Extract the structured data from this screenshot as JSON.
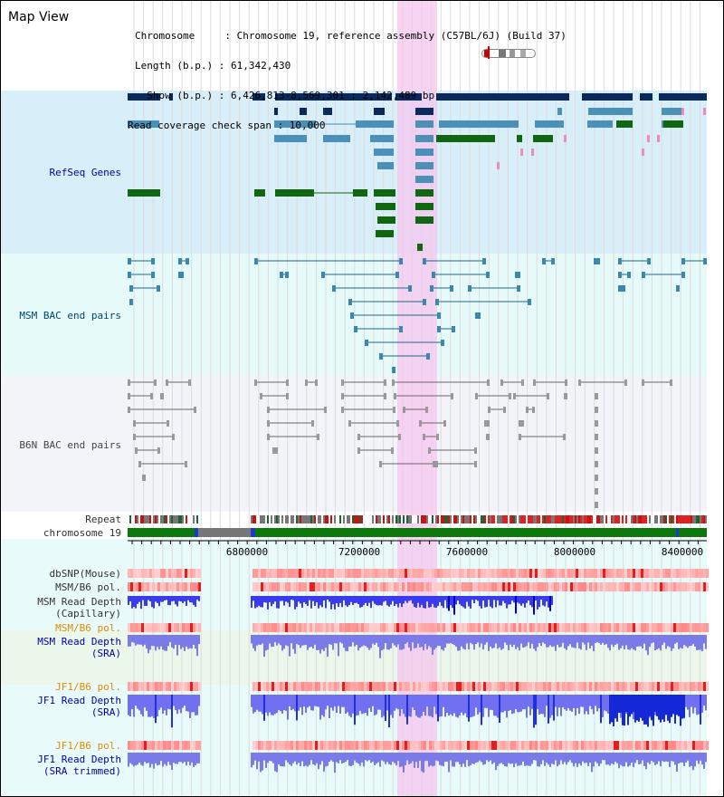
{
  "title": "Map View",
  "info_lines": [
    "Chromosome     : Chromosome 19, reference assembly (C57BL/6J) (Build 37)",
    "Length (b.p.) : 61,342,430",
    "  Show (b.p.) : 6,426,813-8,569,301 : 2,142,489 bp",
    "Read coverage check span : 10,000"
  ],
  "tracks": {
    "refseq": "RefSeq Genes",
    "msm_bac": "MSM BAC end pairs",
    "b6n_bac": "B6N BAC end pairs",
    "repeat": "Repeat",
    "chromosome": "chromosome 19",
    "dbsnp": "dbSNP(Mouse)",
    "msm_b6_pol_1": "MSM/B6 pol.",
    "msm_read_depth_cap_1": "MSM Read Depth",
    "msm_read_depth_cap_2": "(Capillary)",
    "msm_b6_pol_2": "MSM/B6 pol.",
    "msm_read_depth_sra_1": "MSM Read Depth",
    "msm_read_depth_sra_2": "(SRA)",
    "jf1_b6_pol_1": "JF1/B6 pol.",
    "jf1_read_depth_1": "JF1 Read Depth",
    "jf1_read_depth_2": "(SRA)",
    "jf1_b6_pol_2": "JF1/B6 pol.",
    "jf1_trim_1": "JF1 Read Depth",
    "jf1_trim_2": "(SRA trimmed)"
  },
  "axis_ticks": [
    "6800000",
    "7200000",
    "7600000",
    "8000000",
    "8400000"
  ],
  "colors": {
    "gene_navy": "#0a2a5e",
    "gene_blue": "#4a90b8",
    "gene_green": "#116611",
    "highlight": "#f6c6ef",
    "refseq_bg": "#d8eef8",
    "bac_bg": "#e6fafa",
    "b6n_bg": "#f2f4fa",
    "chromosome": "#0b7a0b"
  }
}
